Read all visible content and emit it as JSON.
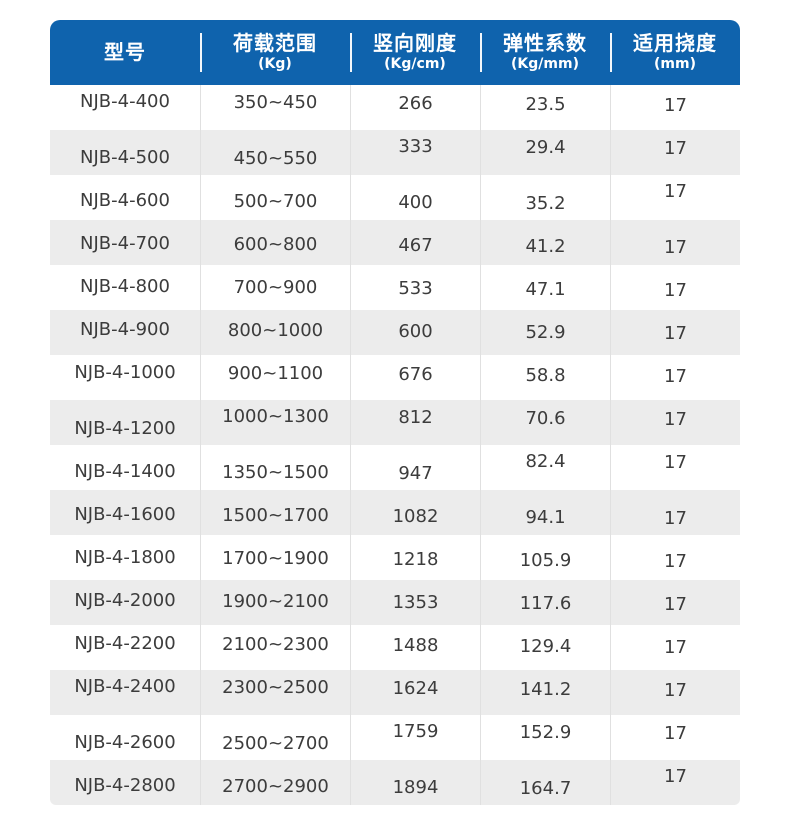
{
  "table": {
    "columns": [
      {
        "title": "型号",
        "unit": ""
      },
      {
        "title": "荷载范围",
        "unit": "(Kg)"
      },
      {
        "title": "竖向刚度",
        "unit": "(Kg/cm)"
      },
      {
        "title": "弹性系数",
        "unit": "(Kg/mm)"
      },
      {
        "title": "适用挠度",
        "unit": "(mm)"
      }
    ],
    "column_names": [
      "model",
      "load-range",
      "vertical-stiffness",
      "elastic-coefficient",
      "applicable-deflection"
    ],
    "rows": [
      [
        "NJB-4-400",
        "350~450",
        "266",
        "23.5",
        "17"
      ],
      [
        "NJB-4-500",
        "450~550",
        "333",
        "29.4",
        "17"
      ],
      [
        "NJB-4-600",
        "500~700",
        "400",
        "35.2",
        "17"
      ],
      [
        "NJB-4-700",
        "600~800",
        "467",
        "41.2",
        "17"
      ],
      [
        "NJB-4-800",
        "700~900",
        "533",
        "47.1",
        "17"
      ],
      [
        "NJB-4-900",
        "800~1000",
        "600",
        "52.9",
        "17"
      ],
      [
        "NJB-4-1000",
        "900~1100",
        "676",
        "58.8",
        "17"
      ],
      [
        "NJB-4-1200",
        "1000~1300",
        "812",
        "70.6",
        "17"
      ],
      [
        "NJB-4-1400",
        "1350~1500",
        "947",
        "82.4",
        "17"
      ],
      [
        "NJB-4-1600",
        "1500~1700",
        "1082",
        "94.1",
        "17"
      ],
      [
        "NJB-4-1800",
        "1700~1900",
        "1218",
        "105.9",
        "17"
      ],
      [
        "NJB-4-2000",
        "1900~2100",
        "1353",
        "117.6",
        "17"
      ],
      [
        "NJB-4-2200",
        "2100~2300",
        "1488",
        "129.4",
        "17"
      ],
      [
        "NJB-4-2400",
        "2300~2500",
        "1624",
        "141.2",
        "17"
      ],
      [
        "NJB-4-2600",
        "2500~2700",
        "1759",
        "152.9",
        "17"
      ],
      [
        "NJB-4-2800",
        "2700~2900",
        "1894",
        "164.7",
        "17"
      ]
    ],
    "colors": {
      "header_bg": "#0f63ad",
      "header_text": "#ffffff",
      "stripe_bg": "#ececec",
      "body_text": "#3c3c3c",
      "divider": "#e0e0e0"
    }
  }
}
